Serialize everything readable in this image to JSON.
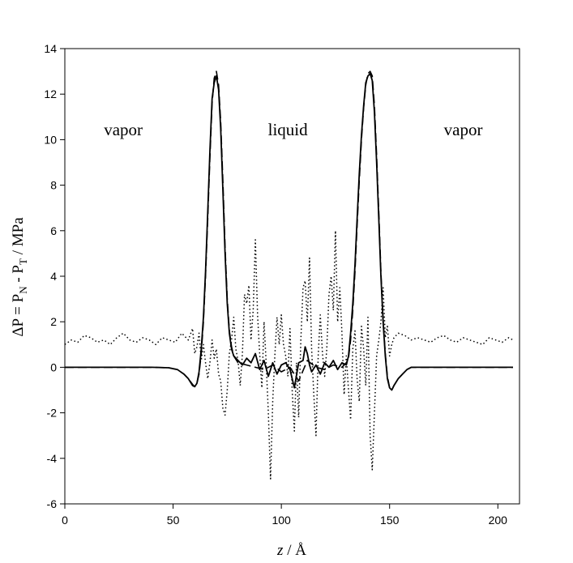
{
  "chart_data": {
    "type": "line",
    "title": "",
    "xlabel": {
      "var": "z",
      "rest": " / Å"
    },
    "ylabel": {
      "p1": "ΔP = P",
      "s1": "N",
      "p2": " - P",
      "s2": "T",
      "p3": " / MPa"
    },
    "xlim": [
      0,
      210
    ],
    "ylim": [
      -6,
      14
    ],
    "x_ticks": [
      0,
      50,
      100,
      150,
      200
    ],
    "y_ticks": [
      -6,
      -4,
      -2,
      0,
      2,
      4,
      6,
      8,
      10,
      12,
      14
    ],
    "grid": false,
    "legend": "none",
    "annotations": [
      {
        "text": "vapor",
        "x": 27,
        "y": 10.2
      },
      {
        "text": "liquid",
        "x": 103,
        "y": 10.2
      },
      {
        "text": "vapor",
        "x": 184,
        "y": 10.2
      }
    ],
    "series": [
      {
        "style": "solid",
        "x": [
          0,
          10,
          20,
          30,
          40,
          48,
          52,
          55,
          57,
          59,
          60,
          61,
          62,
          63,
          64,
          65,
          66,
          67,
          68,
          69,
          70,
          71,
          72,
          73,
          74,
          75,
          76,
          77,
          78,
          80,
          82,
          84,
          86,
          88,
          90,
          92,
          94,
          96,
          98,
          100,
          102,
          104,
          106,
          108,
          110,
          111,
          112,
          113,
          114,
          116,
          118,
          120,
          122,
          124,
          126,
          128,
          130,
          131,
          132,
          133,
          134,
          135,
          136,
          137,
          138,
          139,
          140,
          141,
          142,
          143,
          144,
          145,
          146,
          147,
          148,
          149,
          150,
          151,
          152,
          154,
          156,
          158,
          160,
          165,
          170,
          180,
          190,
          200,
          207
        ],
        "y": [
          0,
          0,
          0,
          0,
          0,
          -0.02,
          -0.1,
          -0.3,
          -0.5,
          -0.8,
          -0.85,
          -0.7,
          -0.2,
          0.8,
          2.2,
          4.2,
          6.8,
          9.5,
          11.8,
          12.5,
          12.8,
          12.2,
          10.5,
          7.8,
          5.0,
          2.8,
          1.5,
          0.8,
          0.5,
          0.3,
          0.1,
          0.4,
          0.2,
          0.6,
          -0.1,
          0.3,
          -0.4,
          0.2,
          -0.3,
          0.1,
          0.2,
          -0.1,
          -0.9,
          0.2,
          0.3,
          0.9,
          0.6,
          0.1,
          -0.2,
          0.1,
          -0.3,
          0.2,
          0.0,
          0.3,
          -0.1,
          0.2,
          0.1,
          0.5,
          1.5,
          2.8,
          4.5,
          6.5,
          8.5,
          10.2,
          11.5,
          12.5,
          12.8,
          12.9,
          12.6,
          11.2,
          9.0,
          6.5,
          4.0,
          2.0,
          0.5,
          -0.5,
          -0.9,
          -1.0,
          -0.8,
          -0.5,
          -0.3,
          -0.1,
          0,
          0,
          0,
          0,
          0,
          0,
          0
        ]
      },
      {
        "style": "dashed",
        "x": [
          0,
          10,
          20,
          30,
          40,
          48,
          52,
          55,
          57,
          59,
          60,
          61,
          62,
          63,
          64,
          65,
          66,
          67,
          68,
          69,
          70,
          71,
          72,
          73,
          74,
          75,
          76,
          77,
          78,
          80,
          84,
          88,
          92,
          96,
          100,
          104,
          108,
          112,
          116,
          120,
          124,
          128,
          130,
          131,
          132,
          133,
          134,
          135,
          136,
          137,
          138,
          139,
          140,
          141,
          142,
          143,
          144,
          145,
          146,
          147,
          148,
          149,
          150,
          151,
          152,
          154,
          156,
          158,
          160,
          165,
          170,
          180,
          190,
          200,
          207
        ],
        "y": [
          0,
          0,
          0,
          0,
          0,
          -0.02,
          -0.1,
          -0.3,
          -0.5,
          -0.75,
          -0.85,
          -0.7,
          -0.3,
          0.6,
          2.0,
          4.0,
          6.5,
          9.2,
          11.6,
          12.7,
          13.0,
          12.4,
          10.8,
          8.2,
          5.3,
          3.0,
          1.6,
          0.9,
          0.5,
          0.2,
          0.1,
          0.0,
          -0.1,
          0.1,
          -0.2,
          0.0,
          -0.6,
          0.3,
          0.0,
          -0.1,
          0.1,
          0.0,
          0.2,
          0.4,
          1.2,
          2.5,
          4.2,
          6.2,
          8.2,
          10.0,
          11.4,
          12.4,
          12.9,
          13.0,
          12.8,
          11.5,
          9.3,
          6.8,
          4.2,
          2.1,
          0.6,
          -0.4,
          -0.9,
          -1.0,
          -0.8,
          -0.5,
          -0.3,
          -0.1,
          0,
          0,
          0,
          0,
          0,
          0,
          0
        ]
      },
      {
        "style": "dotted",
        "x": [
          0,
          3,
          6,
          9,
          12,
          15,
          18,
          21,
          24,
          27,
          30,
          33,
          36,
          39,
          42,
          45,
          48,
          51,
          54,
          57,
          59,
          60,
          61,
          62,
          63,
          64,
          65,
          66,
          67,
          68,
          69,
          70,
          71,
          72,
          73,
          74,
          75,
          76,
          77,
          78,
          79,
          80,
          81,
          82,
          83,
          84,
          85,
          86,
          87,
          88,
          89,
          90,
          91,
          92,
          93,
          94,
          95,
          96,
          97,
          98,
          99,
          100,
          101,
          102,
          103,
          104,
          105,
          106,
          107,
          108,
          109,
          110,
          111,
          112,
          113,
          114,
          115,
          116,
          117,
          118,
          119,
          120,
          121,
          122,
          123,
          124,
          125,
          126,
          127,
          128,
          129,
          130,
          131,
          132,
          133,
          134,
          135,
          136,
          137,
          138,
          139,
          140,
          141,
          142,
          143,
          144,
          145,
          146,
          147,
          148,
          149,
          150,
          151,
          152,
          154,
          157,
          160,
          163,
          166,
          169,
          172,
          175,
          178,
          181,
          184,
          187,
          190,
          193,
          196,
          199,
          202,
          205,
          207
        ],
        "y": [
          1.0,
          1.2,
          1.1,
          1.4,
          1.3,
          1.1,
          1.2,
          1.0,
          1.3,
          1.5,
          1.2,
          1.1,
          1.3,
          1.2,
          1.0,
          1.3,
          1.2,
          1.1,
          1.5,
          1.2,
          1.7,
          0.6,
          0.9,
          1.5,
          0.3,
          1.0,
          0.2,
          -0.5,
          0.2,
          1.2,
          0.4,
          0.8,
          -0.3,
          -0.6,
          -1.8,
          -2.1,
          -1.0,
          0.6,
          1.2,
          2.2,
          0.8,
          0.3,
          -0.8,
          0.6,
          3.2,
          2.8,
          3.6,
          1.2,
          2.5,
          5.6,
          2.3,
          0.6,
          -0.9,
          2.0,
          0.2,
          -2.0,
          -4.9,
          -1.5,
          0.5,
          2.2,
          1.0,
          2.3,
          1.0,
          0.5,
          -0.4,
          1.7,
          -1.0,
          -2.8,
          0.2,
          -2.2,
          1.2,
          3.5,
          3.8,
          2.0,
          4.8,
          0.8,
          -1.2,
          -3.0,
          0.5,
          2.3,
          0.6,
          -0.4,
          0.8,
          3.2,
          4.0,
          2.5,
          6.0,
          2.0,
          3.5,
          1.5,
          -1.2,
          0.5,
          -1.0,
          -2.3,
          0.8,
          1.6,
          -0.5,
          -1.5,
          1.8,
          0.8,
          -0.8,
          2.2,
          -3.0,
          -4.5,
          -2.0,
          0.5,
          1.2,
          2.0,
          3.5,
          1.3,
          1.8,
          0.5,
          1.0,
          1.3,
          1.5,
          1.4,
          1.2,
          1.3,
          1.2,
          1.1,
          1.3,
          1.4,
          1.2,
          1.1,
          1.3,
          1.2,
          1.1,
          1.0,
          1.3,
          1.2,
          1.1,
          1.3,
          1.2
        ]
      }
    ]
  }
}
